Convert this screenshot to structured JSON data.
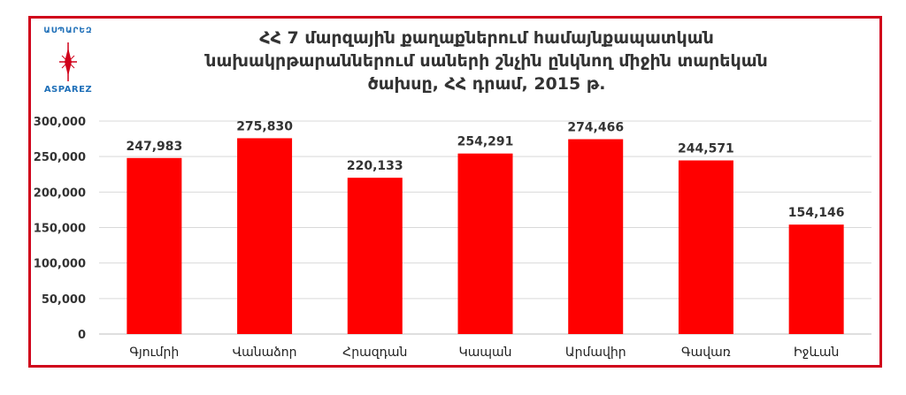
{
  "logo": {
    "text_top": "ԱՍՊԱՐԵԶ",
    "text_bottom": "ASPAREZ",
    "color": "#1e6fb8"
  },
  "chart_data": {
    "type": "bar",
    "title_lines": [
      "ՀՀ 7 մարզային քաղաքներում համայնքապատկան",
      "նախակրթարաններում սաների շնչին ընկնող միջին տարեկան",
      "ծախսը, ՀՀ դրամ, 2015 թ."
    ],
    "categories": [
      "Գյումրի",
      "Վանաձոր",
      "Հրազդան",
      "Կապան",
      "Արմավիր",
      "Գավառ",
      "Իջևան"
    ],
    "values": [
      247983,
      275830,
      220133,
      254291,
      274466,
      244571,
      154146
    ],
    "value_labels": [
      "247,983",
      "275,830",
      "220,133",
      "254,291",
      "274,466",
      "244,571",
      "154,146"
    ],
    "ylim": [
      0,
      300000
    ],
    "yticks": [
      "0",
      "50,000",
      "100,000",
      "150,000",
      "200,000",
      "250,000",
      "300,000"
    ],
    "ytick_values": [
      0,
      50000,
      100000,
      150000,
      200000,
      250000,
      300000
    ],
    "grid": true,
    "xlabel": "",
    "ylabel": "",
    "bar_color": "#ff0000",
    "border_color": "#d0021b"
  }
}
